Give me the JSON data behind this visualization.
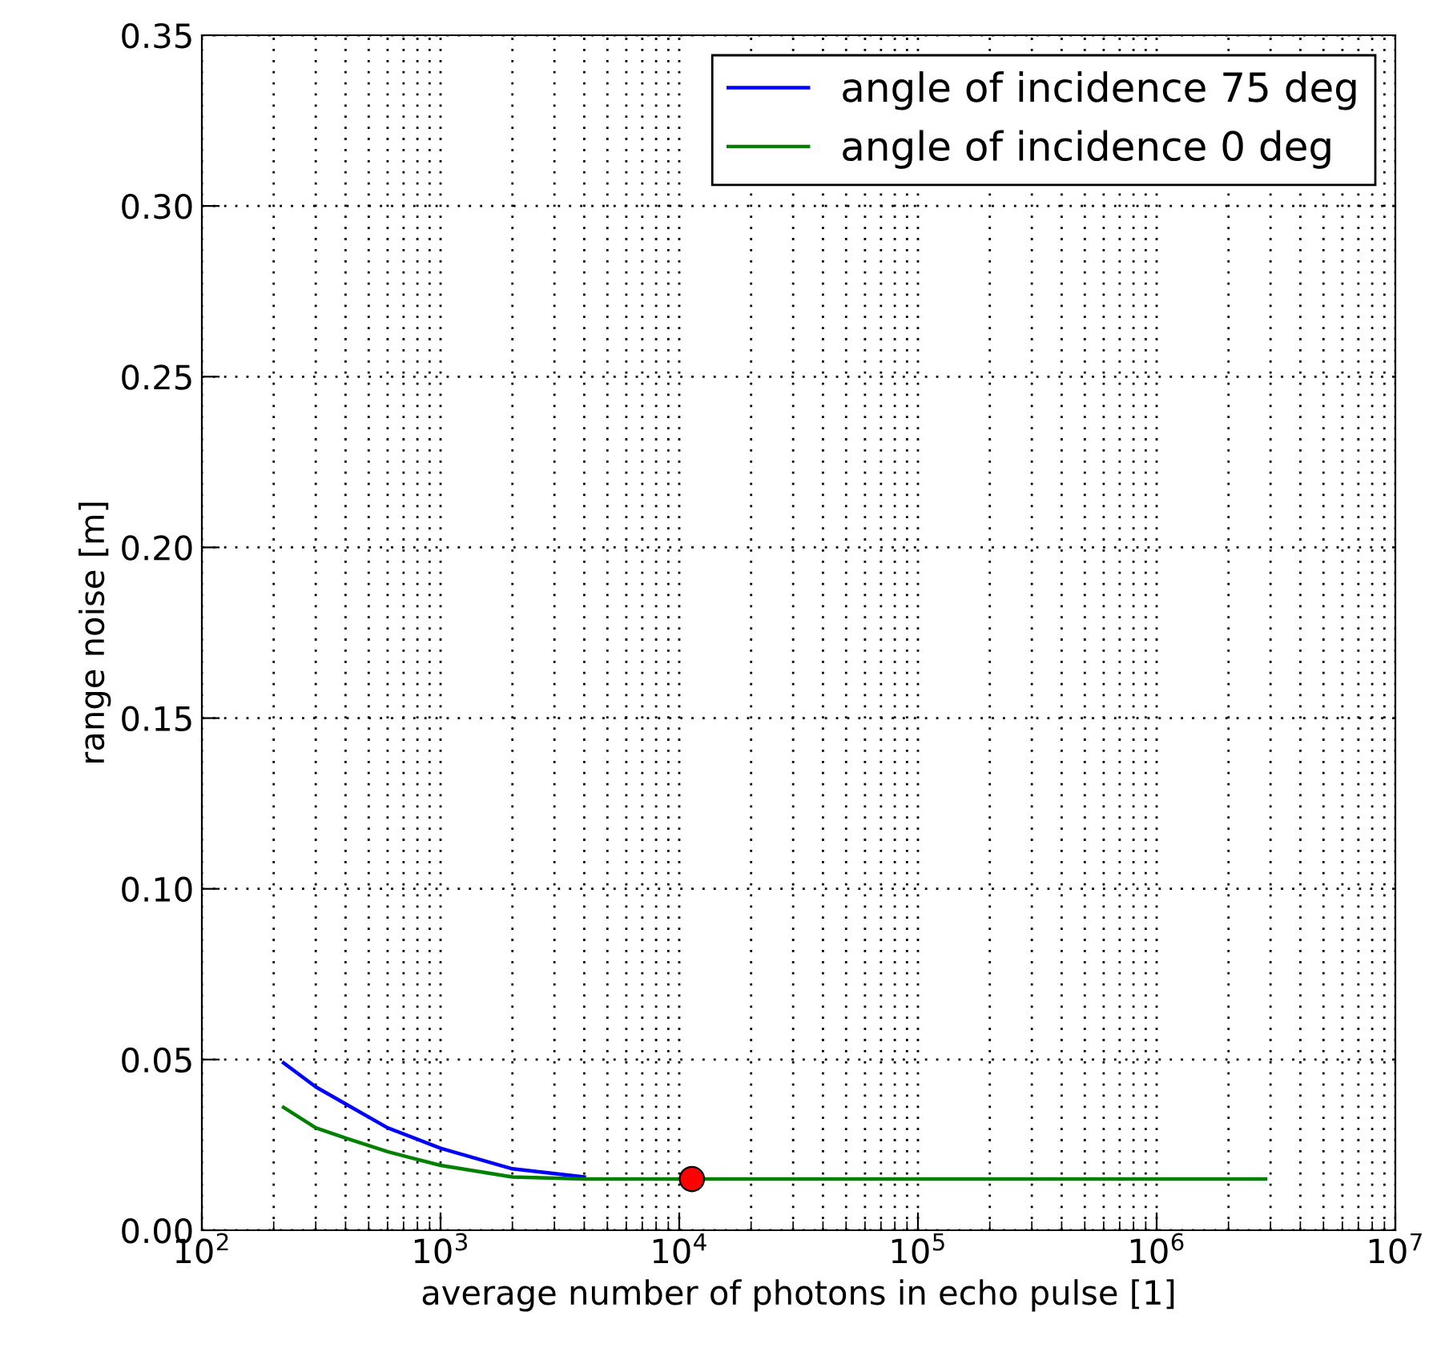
{
  "chart_data": {
    "type": "line",
    "xlabel": "average number of photons in echo pulse [1]",
    "ylabel": "range noise [m]",
    "log": "x",
    "xlim": [
      100,
      10000000
    ],
    "xticks": [
      {
        "value": 100,
        "label": "10$^{2}$"
      },
      {
        "value": 1000,
        "label": "10$^{3}$"
      },
      {
        "value": 10000,
        "label": "10$^{4}$"
      },
      {
        "value": 100000,
        "label": "10$^{5}$"
      },
      {
        "value": 1000000,
        "label": "10$^{6}$"
      },
      {
        "value": 10000000,
        "label": "10$^{7}$"
      }
    ],
    "ylim": [
      0,
      0.35
    ],
    "yticks": [
      {
        "value": 0,
        "label": "0.00"
      },
      {
        "value": 0.05,
        "label": "0.05"
      },
      {
        "value": 0.1,
        "label": "0.10"
      },
      {
        "value": 0.15,
        "label": "0.15"
      },
      {
        "value": 0.2,
        "label": "0.20"
      },
      {
        "value": 0.25,
        "label": "0.25"
      },
      {
        "value": 0.3,
        "label": "0.30"
      },
      {
        "value": 0.35,
        "label": "0.35"
      }
    ],
    "grid": true,
    "legend": "top right",
    "series": [
      {
        "name": "angle of incidence 75 deg",
        "color": "#0000ff",
        "x": [
          220,
          300,
          400,
          600,
          1000,
          2000,
          4000
        ],
        "values": [
          0.049,
          0.042,
          0.037,
          0.03,
          0.024,
          0.018,
          0.0156
        ]
      },
      {
        "name": "angle of incidence 0 deg",
        "color": "#008000",
        "x": [
          220,
          300,
          400,
          600,
          1000,
          2000,
          4000,
          8000,
          100000,
          2860000
        ],
        "values": [
          0.036,
          0.03,
          0.027,
          0.023,
          0.019,
          0.0156,
          0.015,
          0.015,
          0.015,
          0.015
        ]
      },
      {
        "type": "scatter",
        "color": "#ff0000",
        "marker": "circle",
        "x": [
          11300
        ],
        "values": [
          0.015
        ]
      }
    ]
  }
}
